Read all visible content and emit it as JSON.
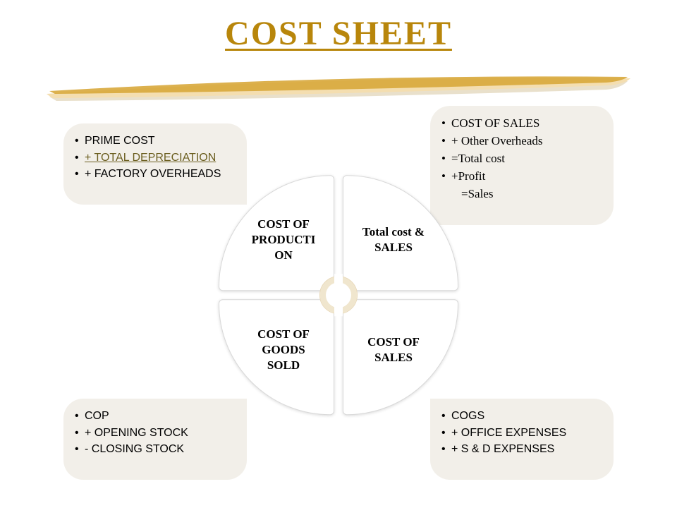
{
  "title": {
    "text": "COST SHEET",
    "color": "#b8860b",
    "fontsize": 48
  },
  "brush": {
    "color_light": "#f4deb0",
    "color_dark": "#d8a83c",
    "shadow": "#bfa56a"
  },
  "background": "#ffffff",
  "circle": {
    "diameter": 340,
    "segment_bg": "#ffffff",
    "segment_border": "#d9d9d9",
    "labels": {
      "top_left": "COST OF PRODUCTI ON",
      "top_right": "Total cost & SALES",
      "bottom_left": "COST OF GOODS SOLD",
      "bottom_right": "COST OF SALES"
    },
    "label_fontsize": 17,
    "label_color": "#000000"
  },
  "callouts": {
    "bg": "#f2efe9",
    "radius": 28,
    "top_left": {
      "font": "sans",
      "items": [
        {
          "text": "PRIME COST"
        },
        {
          "text": "+ TOTAL DEPRECIATION",
          "link": true,
          "color": "#6b5e1f"
        },
        {
          "text": "+ FACTORY OVERHEADS"
        }
      ]
    },
    "top_right": {
      "font": "serif",
      "items": [
        {
          "text": " COST OF SALES"
        },
        {
          "text": "+ Other Overheads"
        },
        {
          "text": "=Total cost"
        },
        {
          "text": "+Profit"
        },
        {
          "text": "=Sales",
          "sub": true
        }
      ]
    },
    "bottom_left": {
      "font": "sans",
      "items": [
        {
          "text": "COP"
        },
        {
          "text": "+ OPENING STOCK"
        },
        {
          "text": "- CLOSING STOCK"
        }
      ]
    },
    "bottom_right": {
      "font": "sans",
      "items": [
        {
          "text": "COGS"
        },
        {
          "text": "+ OFFICE EXPENSES"
        },
        {
          "text": "+ S & D EXPENSES"
        }
      ]
    }
  }
}
